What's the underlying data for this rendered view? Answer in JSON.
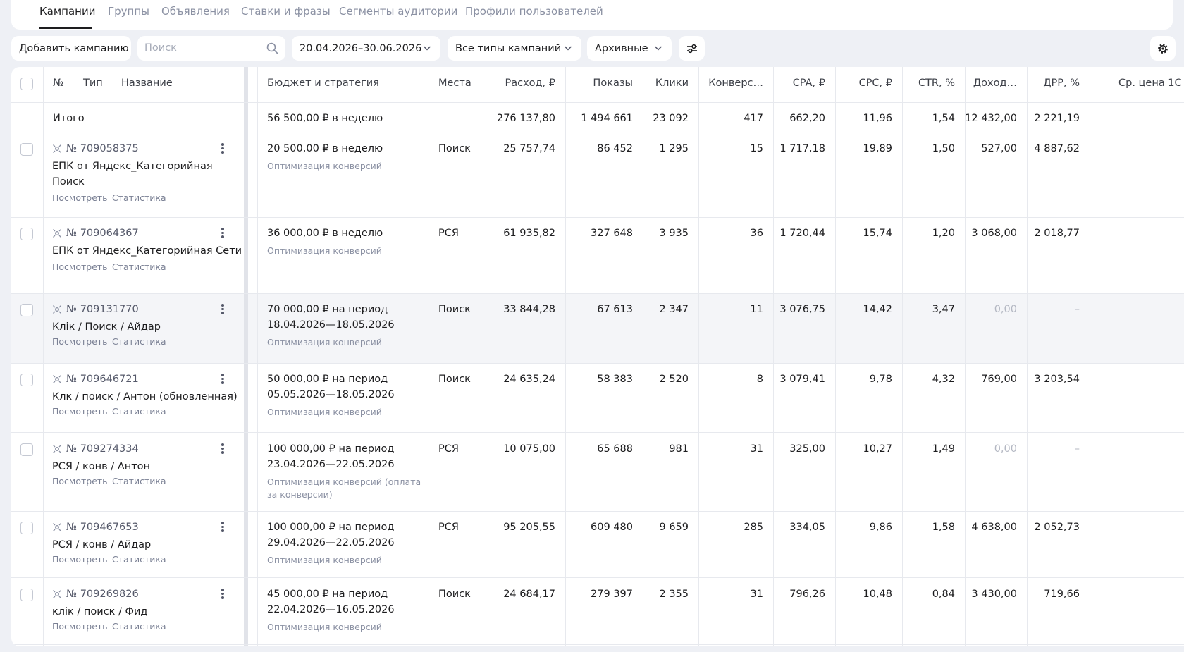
{
  "tabs": [
    {
      "label": "Кампании",
      "active": true
    },
    {
      "label": "Группы",
      "active": false
    },
    {
      "label": "Объявления",
      "active": false
    },
    {
      "label": "Ставки и фразы",
      "active": false
    },
    {
      "label": "Сегменты аудитории",
      "active": false
    },
    {
      "label": "Профили пользователей",
      "active": false
    }
  ],
  "toolbar": {
    "add_campaign": "Добавить кампанию",
    "search_placeholder": "Поиск",
    "date_range": "20.04.2026–30.06.2026",
    "campaign_types": "Все типы кампаний",
    "archive_filter": "Архивные"
  },
  "table": {
    "headers": {
      "num": "№",
      "type": "Тип",
      "name": "Название",
      "budget": "Бюджет и стратегия",
      "places": "Места",
      "spend": "Расход, ₽",
      "impressions": "Показы",
      "clicks": "Клики",
      "conversions": "Конверс…",
      "cpa": "CPA, ₽",
      "cpc": "CPC, ₽",
      "ctr": "CTR, %",
      "income": "Доход…",
      "drr": "ДРР, %",
      "avg_price": "Ср. цена 1С"
    },
    "total": {
      "label": "Итого",
      "budget": "56 500,00 ₽ в неделю",
      "spend": "276 137,80",
      "impressions": "1 494 661",
      "clicks": "23 092",
      "conversions": "417",
      "cpa": "662,20",
      "cpc": "11,96",
      "ctr": "1,54",
      "income": "12 432,00",
      "drr": "2 221,19"
    },
    "links": {
      "view": "Посмотреть",
      "stats": "Статистика"
    },
    "rows": [
      {
        "id": "№ 709058375",
        "name1": "ЕПК от Яндекс_Категорийная",
        "name2": "Поиск",
        "budget1": "20 500,00 ₽ в неделю",
        "budget2": "",
        "strategy1": "Оптимизация конверсий",
        "strategy2": "",
        "place": "Поиск",
        "spend": "25 757,74",
        "impressions": "86 452",
        "clicks": "1 295",
        "conversions": "15",
        "cpa": "1 717,18",
        "cpc": "19,89",
        "ctr": "1,50",
        "income": "527,00",
        "drr": "4 887,62"
      },
      {
        "id": "№ 709064367",
        "name1": "ЕПК от Яндекс_Категорийная Сети",
        "name2": "",
        "budget1": "36 000,00 ₽ в неделю",
        "budget2": "",
        "strategy1": "Оптимизация конверсий",
        "strategy2": "",
        "place": "РСЯ",
        "spend": "61 935,82",
        "impressions": "327 648",
        "clicks": "3 935",
        "conversions": "36",
        "cpa": "1 720,44",
        "cpc": "15,74",
        "ctr": "1,20",
        "income": "3 068,00",
        "drr": "2 018,77"
      },
      {
        "id": "№ 709131770",
        "name1": "Клік / Поиск / Айдар",
        "name2": "",
        "budget1": "70 000,00 ₽ на период",
        "budget2": "18.04.2026—18.05.2026",
        "strategy1": "Оптимизация конверсий",
        "strategy2": "",
        "place": "Поиск",
        "spend": "33 844,28",
        "impressions": "67 613",
        "clicks": "2 347",
        "conversions": "11",
        "cpa": "3 076,75",
        "cpc": "14,42",
        "ctr": "3,47",
        "income": "0,00",
        "drr": "–"
      },
      {
        "id": "№ 709646721",
        "name1": "Клк / поиск / Антон (обновленная)",
        "name2": "",
        "budget1": "50 000,00 ₽ на период",
        "budget2": "05.05.2026—18.05.2026",
        "strategy1": "Оптимизация конверсий",
        "strategy2": "",
        "place": "Поиск",
        "spend": "24 635,24",
        "impressions": "58 383",
        "clicks": "2 520",
        "conversions": "8",
        "cpa": "3 079,41",
        "cpc": "9,78",
        "ctr": "4,32",
        "income": "769,00",
        "drr": "3 203,54"
      },
      {
        "id": "№ 709274334",
        "name1": "РСЯ / конв / Антон",
        "name2": "",
        "budget1": "100 000,00 ₽ на период",
        "budget2": "23.04.2026—22.05.2026",
        "strategy1": "Оптимизация конверсий (оплата",
        "strategy2": "за конверсии)",
        "place": "РСЯ",
        "spend": "10 075,00",
        "impressions": "65 688",
        "clicks": "981",
        "conversions": "31",
        "cpa": "325,00",
        "cpc": "10,27",
        "ctr": "1,49",
        "income": "0,00",
        "drr": "–"
      },
      {
        "id": "№ 709467653",
        "name1": "РСЯ / конв / Айдар",
        "name2": "",
        "budget1": "100 000,00 ₽ на период",
        "budget2": "29.04.2026—22.05.2026",
        "strategy1": "Оптимизация конверсий",
        "strategy2": "",
        "place": "РСЯ",
        "spend": "95 205,55",
        "impressions": "609 480",
        "clicks": "9 659",
        "conversions": "285",
        "cpa": "334,05",
        "cpc": "9,86",
        "ctr": "1,58",
        "income": "4 638,00",
        "drr": "2 052,73"
      },
      {
        "id": "№ 709269826",
        "name1": "клік / поиск / Фид",
        "name2": "",
        "budget1": "45 000,00 ₽ на период",
        "budget2": "22.04.2026—16.05.2026",
        "strategy1": "Оптимизация конверсий",
        "strategy2": "",
        "place": "Поиск",
        "spend": "24 684,17",
        "impressions": "279 397",
        "clicks": "2 355",
        "conversions": "31",
        "cpa": "796,26",
        "cpc": "10,48",
        "ctr": "0,84",
        "income": "3 430,00",
        "drr": "719,66"
      }
    ]
  },
  "icons": {
    "search": "search-icon",
    "chevron": "chevron-down-icon",
    "filters": "sliders-icon",
    "settings": "gear-icon",
    "more": "kebab-menu-icon",
    "campaign_type": "campaign-type-icon"
  }
}
